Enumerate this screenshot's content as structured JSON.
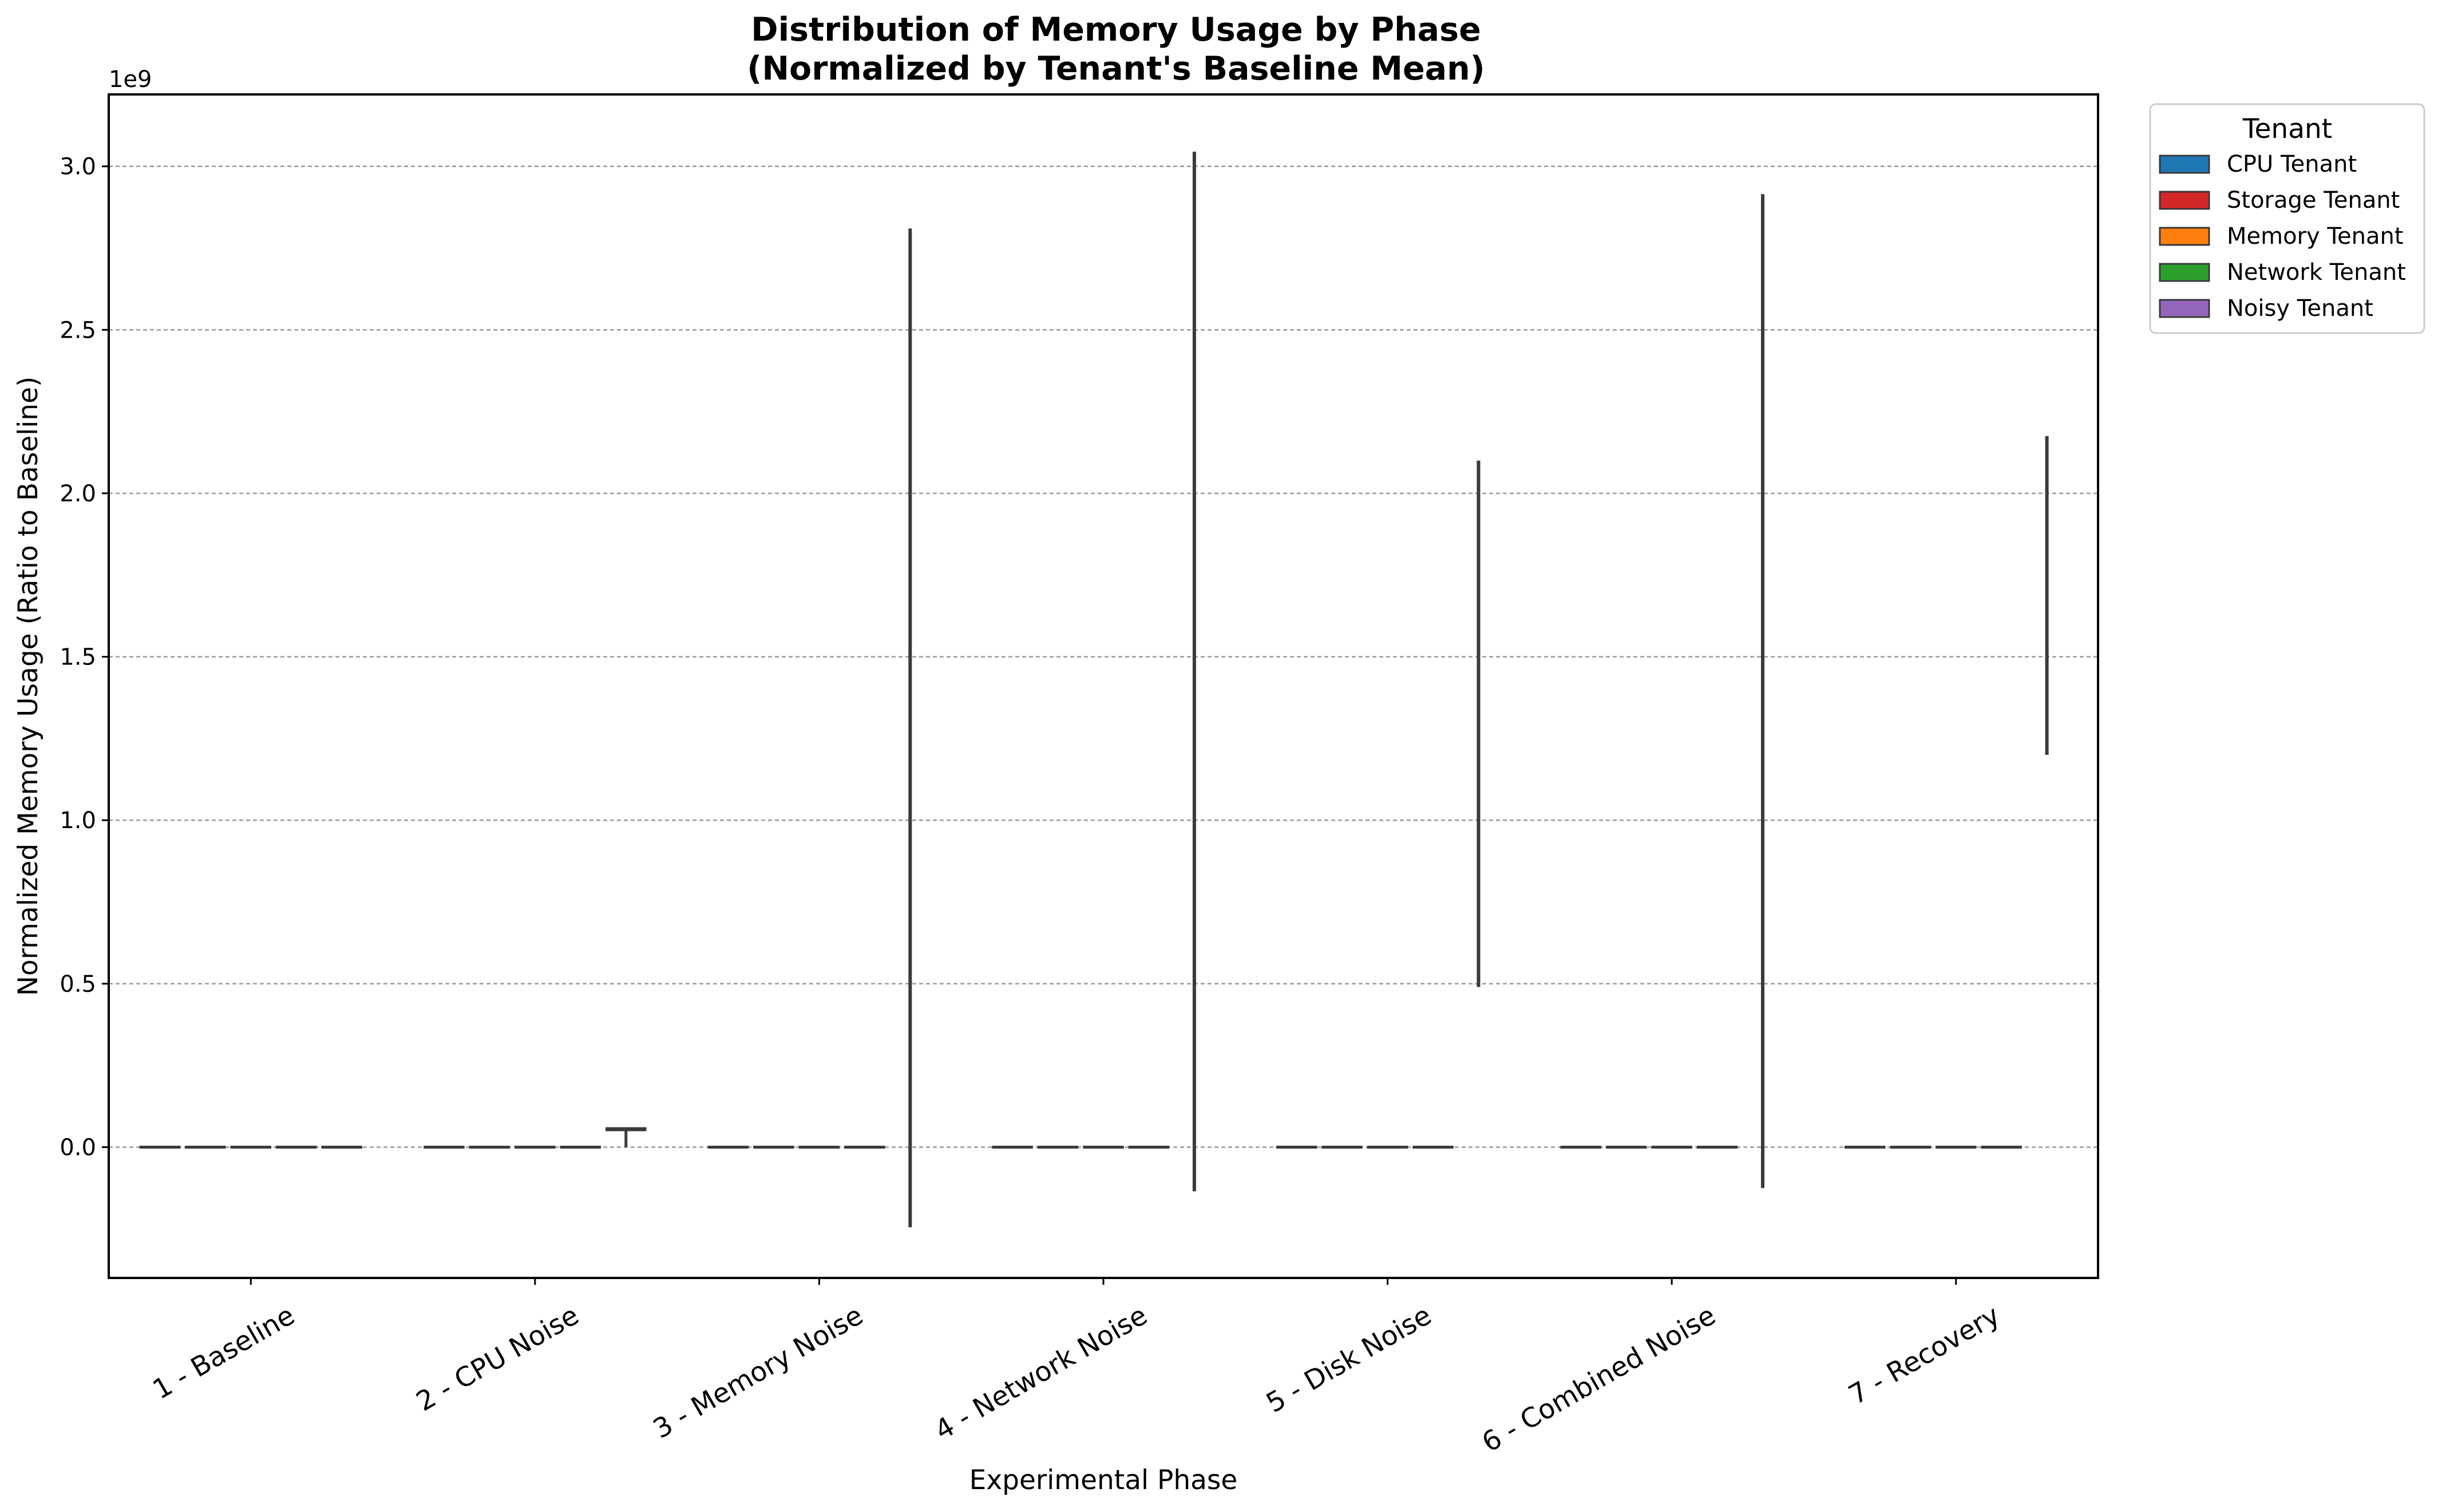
{
  "chart_data": {
    "type": "violin",
    "title_lines": [
      "Distribution of Memory Usage by Phase",
      "(Normalized by Tenant's Baseline Mean)"
    ],
    "xlabel": "Experimental Phase",
    "ylabel": "Normalized Memory Usage (Ratio to Baseline)",
    "y_offset_label": "1e9",
    "y_multiplier": 1000000000,
    "ylim": [
      -0.4,
      3.22
    ],
    "yticks": [
      0.0,
      0.5,
      1.0,
      1.5,
      2.0,
      2.5,
      3.0
    ],
    "ytick_labels": [
      "0.0",
      "0.5",
      "1.0",
      "1.5",
      "2.0",
      "2.5",
      "3.0"
    ],
    "grid": "y-dashed",
    "categories": [
      "1 - Baseline",
      "2 - CPU Noise",
      "3 - Memory Noise",
      "4 - Network Noise",
      "5 - Disk Noise",
      "6 - Combined Noise",
      "7 - Recovery"
    ],
    "legend": {
      "title": "Tenant",
      "placement": "outside-right",
      "entries": [
        {
          "name": "CPU Tenant",
          "color": "#1f77b4"
        },
        {
          "name": "Storage Tenant",
          "color": "#d62728"
        },
        {
          "name": "Memory Tenant",
          "color": "#ff7f0e"
        },
        {
          "name": "Network Tenant",
          "color": "#2ca02c"
        },
        {
          "name": "Noisy Tenant",
          "color": "#9467bd"
        }
      ]
    },
    "series": [
      {
        "name": "CPU Tenant",
        "values": [
          [
            0,
            0
          ],
          [
            0,
            0
          ],
          [
            0,
            0
          ],
          [
            0,
            0
          ],
          [
            0,
            0
          ],
          [
            0,
            0
          ],
          [
            0,
            0
          ]
        ]
      },
      {
        "name": "Storage Tenant",
        "values": [
          [
            0,
            0
          ],
          [
            0,
            0
          ],
          [
            0,
            0
          ],
          [
            0,
            0
          ],
          [
            0,
            0
          ],
          [
            0,
            0
          ],
          [
            0,
            0
          ]
        ]
      },
      {
        "name": "Memory Tenant",
        "values": [
          [
            0,
            0
          ],
          [
            0,
            0
          ],
          [
            0,
            0
          ],
          [
            0,
            0
          ],
          [
            0,
            0
          ],
          [
            0,
            0
          ],
          [
            0,
            0
          ]
        ]
      },
      {
        "name": "Network Tenant",
        "values": [
          [
            0,
            0
          ],
          [
            0,
            0
          ],
          [
            0,
            0
          ],
          [
            0,
            0
          ],
          [
            0,
            0
          ],
          [
            0,
            0
          ],
          [
            0,
            0
          ]
        ]
      },
      {
        "name": "Noisy Tenant",
        "values": [
          [
            0,
            0
          ],
          [
            0,
            0.055
          ],
          [
            -0.245,
            2.81
          ],
          [
            -0.135,
            3.045
          ],
          [
            0.49,
            2.1
          ],
          [
            -0.125,
            2.915
          ],
          [
            1.2,
            2.175
          ]
        ]
      }
    ]
  }
}
